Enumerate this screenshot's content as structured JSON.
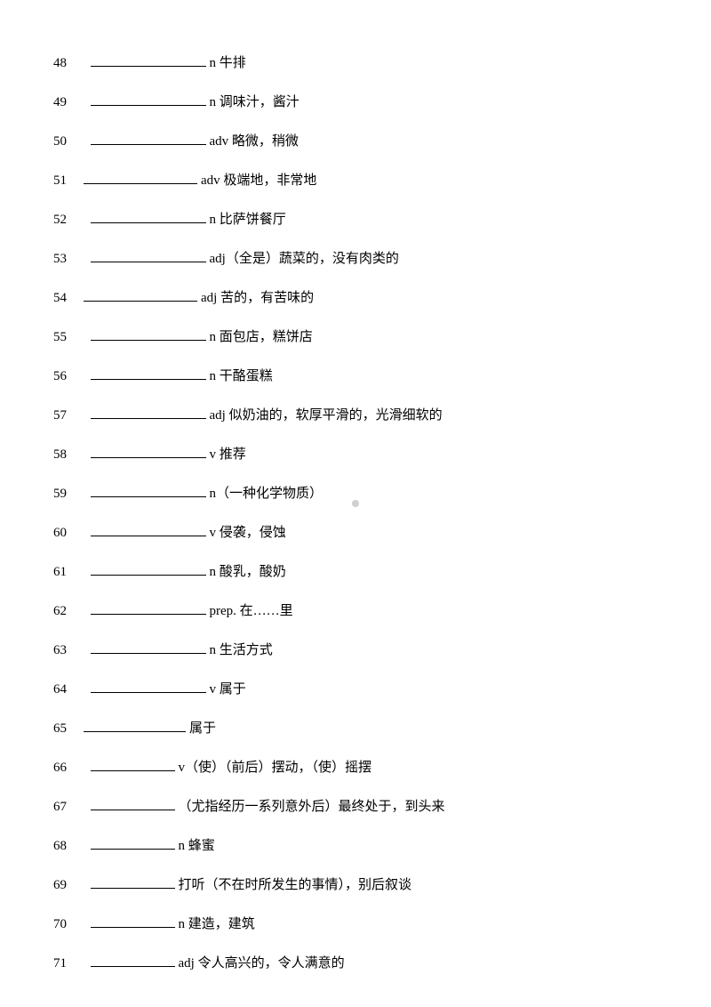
{
  "items": [
    {
      "num": "48",
      "blank_width": 130,
      "def": "n 牛排"
    },
    {
      "num": "49",
      "blank_width": 130,
      "def": " n 调味汁，酱汁"
    },
    {
      "num": "50",
      "blank_width": 130,
      "def": "adv 略微，稍微"
    },
    {
      "num": "51",
      "blank_width": 128,
      "def": "adv 极端地，非常地",
      "no_gap": true
    },
    {
      "num": "52",
      "blank_width": 130,
      "def": " n 比萨饼餐厅"
    },
    {
      "num": "53",
      "blank_width": 130,
      "def": " adj（全是）蔬菜的，没有肉类的"
    },
    {
      "num": "54",
      "blank_width": 128,
      "def": "adj 苦的，有苦味的",
      "no_gap": true
    },
    {
      "num": "55",
      "blank_width": 130,
      "def": "n 面包店，糕饼店"
    },
    {
      "num": "56",
      "blank_width": 130,
      "def": "n 干酪蛋糕"
    },
    {
      "num": "57",
      "blank_width": 130,
      "def": "adj 似奶油的，软厚平滑的，光滑细软的"
    },
    {
      "num": "58",
      "blank_width": 130,
      "def": "v 推荐"
    },
    {
      "num": "59",
      "blank_width": 130,
      "def": "n（一种化学物质）"
    },
    {
      "num": "60",
      "blank_width": 130,
      "def": "v 侵袭，侵蚀"
    },
    {
      "num": "61",
      "blank_width": 130,
      "def": " n 酸乳，酸奶"
    },
    {
      "num": "62",
      "blank_width": 130,
      "def": "prep. 在……里"
    },
    {
      "num": "63",
      "blank_width": 130,
      "def": " n 生活方式"
    },
    {
      "num": "64",
      "blank_width": 130,
      "def": "v 属于"
    },
    {
      "num": "65",
      "blank_width": 115,
      "def": "属于",
      "no_gap": true
    },
    {
      "num": "66",
      "blank_width": 95,
      "def": "v（使）（前后）摆动，（使）摇摆"
    },
    {
      "num": "67",
      "blank_width": 95,
      "def": " （尤指经历一系列意外后）最终处于，到头来"
    },
    {
      "num": "68",
      "blank_width": 95,
      "def": " n 蜂蜜"
    },
    {
      "num": "69",
      "blank_width": 95,
      "def": "  打听（不在时所发生的事情），别后叙谈"
    },
    {
      "num": "70",
      "blank_width": 95,
      "def": " n 建造，建筑"
    },
    {
      "num": "71",
      "blank_width": 95,
      "def": " adj 令人高兴的，令人满意的"
    }
  ]
}
